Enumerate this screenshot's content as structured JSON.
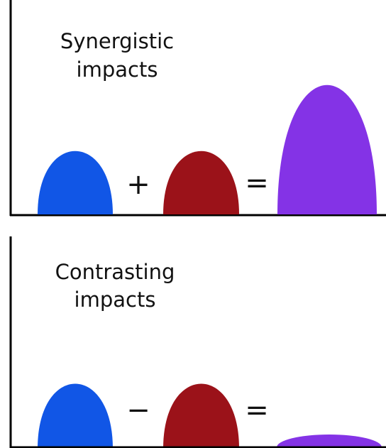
{
  "panels": [
    {
      "title_lines": [
        "Synergistic",
        "impacts"
      ],
      "operators": [
        "+",
        "="
      ]
    },
    {
      "title_lines": [
        "Contrasting",
        "impacts"
      ],
      "operators": [
        "−",
        "="
      ]
    }
  ]
}
